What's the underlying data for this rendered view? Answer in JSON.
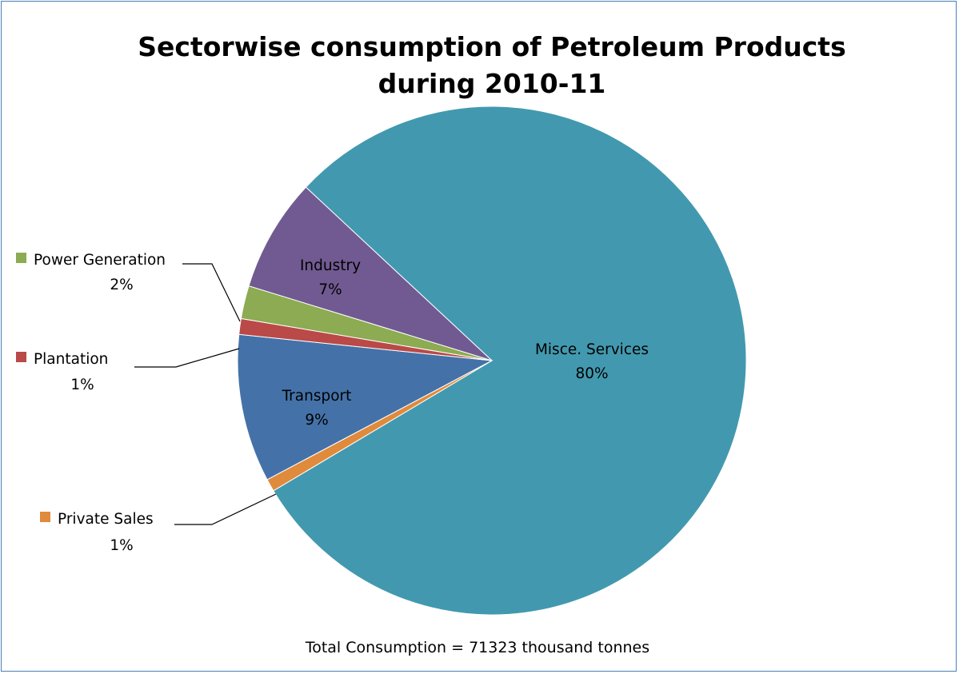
{
  "chart_data": {
    "type": "pie",
    "title_lines": [
      "Sectorwise consumption of Petroleum Products",
      "during 2010-11"
    ],
    "slices": [
      {
        "name": "Misce. Services",
        "percent_label": "80%",
        "value": 79.5,
        "color": "#4299af"
      },
      {
        "name": "Private Sales",
        "percent_label": "1%",
        "value": 0.8,
        "color": "#e08a3c"
      },
      {
        "name": "Transport",
        "percent_label": "9%",
        "value": 9.4,
        "color": "#4472a8"
      },
      {
        "name": "Plantation",
        "percent_label": "1%",
        "value": 1.0,
        "color": "#b94a48"
      },
      {
        "name": "Power Generation",
        "percent_label": "2%",
        "value": 2.1,
        "color": "#8cab52"
      },
      {
        "name": "Industry",
        "percent_label": "7%",
        "value": 7.2,
        "color": "#715a91"
      }
    ],
    "footer": "Total Consumption = 71323 thousand tonnes"
  }
}
